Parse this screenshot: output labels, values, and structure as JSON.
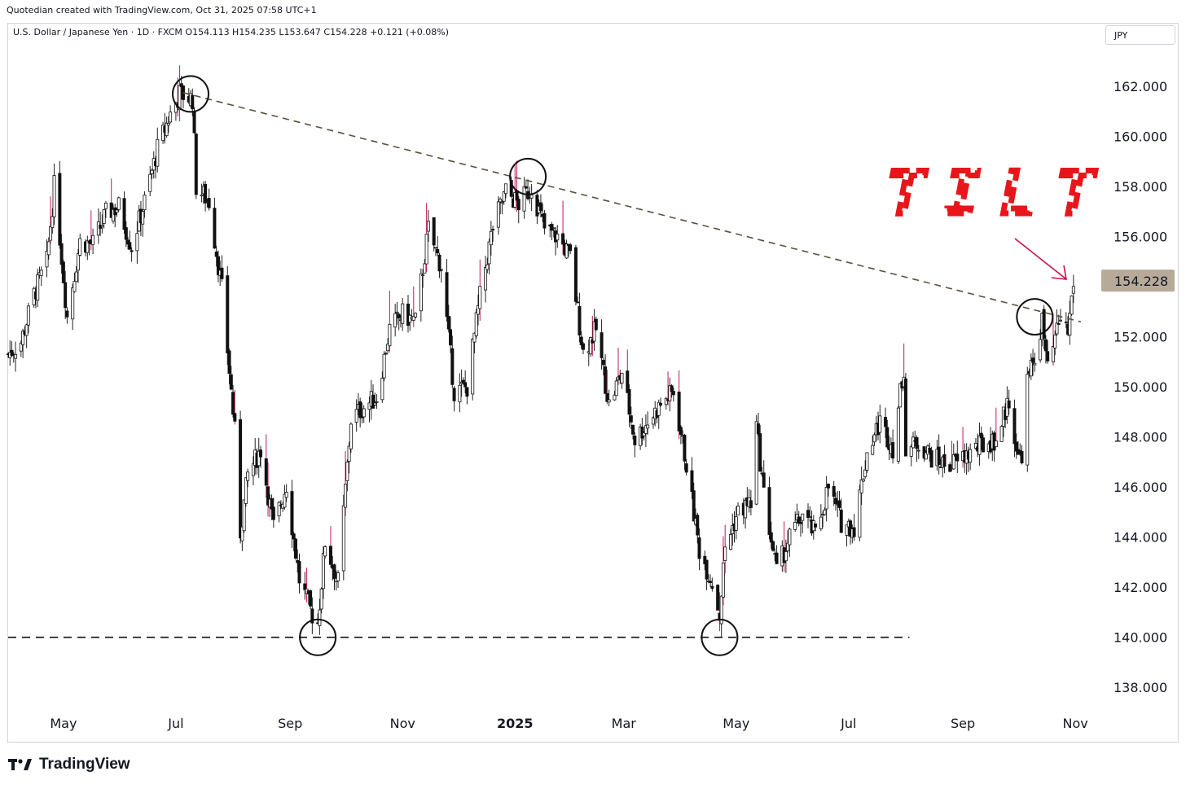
{
  "header": {
    "credit": "Quotedian created with TradingView.com, Oct 31, 2025 07:58 UTC+1",
    "symbol_line": "U.S. Dollar / Japanese Yen · 1D · FXCM  O154.113  H154.235  L153.647  C154.228  +0.121 (+0.08%)",
    "currency": "JPY"
  },
  "footer": {
    "brand": "TradingView",
    "brand_icon": "tradingview-logo-icon"
  },
  "colors": {
    "up": "#ffffff",
    "down": "#111111",
    "wick": "#222222",
    "spike": "#c2185b",
    "trendline": "#5a4f3e",
    "support": "#111111",
    "tilt": "#e8161b",
    "arrow": "#c8104a",
    "price_tag_bg": "#b8aa99"
  },
  "chart_data": {
    "type": "candlestick",
    "title": "",
    "xlabel": "",
    "ylabel": "",
    "ylim": [
      137.0,
      163.5
    ],
    "y_ticks": [
      "138.000",
      "140.000",
      "142.000",
      "144.000",
      "146.000",
      "148.000",
      "150.000",
      "152.000",
      "154.000",
      "156.000",
      "158.000",
      "160.000",
      "162.000"
    ],
    "x_ticks": [
      {
        "label": "May",
        "date": "2024-05-01"
      },
      {
        "label": "Jul",
        "date": "2024-07-01"
      },
      {
        "label": "Sep",
        "date": "2024-09-01"
      },
      {
        "label": "Nov",
        "date": "2024-11-01"
      },
      {
        "label": "2025",
        "date": "2025-01-01",
        "bold": true
      },
      {
        "label": "Mar",
        "date": "2025-03-01"
      },
      {
        "label": "May",
        "date": "2025-05-01"
      },
      {
        "label": "Jul",
        "date": "2025-07-01"
      },
      {
        "label": "Sep",
        "date": "2025-09-01"
      },
      {
        "label": "Nov",
        "date": "2025-11-01"
      }
    ],
    "date_range": [
      "2024-04-01",
      "2025-11-12"
    ],
    "series": [
      {
        "points": [
          [
            "2024-04-01",
            151.3
          ],
          [
            "2024-04-08",
            151.8
          ],
          [
            "2024-04-15",
            153.7
          ],
          [
            "2024-04-22",
            155.0
          ],
          [
            "2024-04-26",
            158.0
          ],
          [
            "2024-04-29",
            156.0
          ],
          [
            "2024-05-03",
            152.8
          ],
          [
            "2024-05-10",
            155.8
          ],
          [
            "2024-05-17",
            155.7
          ],
          [
            "2024-05-24",
            156.9
          ],
          [
            "2024-05-31",
            157.2
          ],
          [
            "2024-06-07",
            155.6
          ],
          [
            "2024-06-14",
            157.4
          ],
          [
            "2024-06-21",
            159.5
          ],
          [
            "2024-06-28",
            160.9
          ],
          [
            "2024-07-03",
            161.7
          ],
          [
            "2024-07-10",
            161.5
          ],
          [
            "2024-07-12",
            158.0
          ],
          [
            "2024-07-19",
            157.4
          ],
          [
            "2024-07-26",
            153.9
          ],
          [
            "2024-08-02",
            148.2
          ],
          [
            "2024-08-05",
            144.2
          ],
          [
            "2024-08-09",
            146.5
          ],
          [
            "2024-08-16",
            147.5
          ],
          [
            "2024-08-23",
            144.4
          ],
          [
            "2024-08-30",
            146.1
          ],
          [
            "2024-09-06",
            142.3
          ],
          [
            "2024-09-13",
            140.9
          ],
          [
            "2024-09-16",
            140.6
          ],
          [
            "2024-09-20",
            143.8
          ],
          [
            "2024-09-27",
            142.2
          ],
          [
            "2024-10-04",
            148.7
          ],
          [
            "2024-10-11",
            149.2
          ],
          [
            "2024-10-18",
            149.6
          ],
          [
            "2024-10-25",
            152.3
          ],
          [
            "2024-11-01",
            152.9
          ],
          [
            "2024-11-08",
            152.6
          ],
          [
            "2024-11-15",
            156.3
          ],
          [
            "2024-11-22",
            154.8
          ],
          [
            "2024-11-29",
            149.8
          ],
          [
            "2024-12-06",
            150.0
          ],
          [
            "2024-12-13",
            153.6
          ],
          [
            "2024-12-20",
            156.4
          ],
          [
            "2024-12-27",
            157.8
          ],
          [
            "2025-01-03",
            157.3
          ],
          [
            "2025-01-10",
            158.0
          ],
          [
            "2025-01-17",
            156.3
          ],
          [
            "2025-01-24",
            156.0
          ],
          [
            "2025-01-31",
            155.2
          ],
          [
            "2025-02-07",
            151.4
          ],
          [
            "2025-02-14",
            152.3
          ],
          [
            "2025-02-21",
            149.3
          ],
          [
            "2025-02-28",
            150.6
          ],
          [
            "2025-03-07",
            147.9
          ],
          [
            "2025-03-14",
            148.6
          ],
          [
            "2025-03-21",
            149.3
          ],
          [
            "2025-03-28",
            149.8
          ],
          [
            "2025-04-04",
            146.9
          ],
          [
            "2025-04-11",
            143.5
          ],
          [
            "2025-04-18",
            142.2
          ],
          [
            "2025-04-22",
            140.9
          ],
          [
            "2025-04-25",
            143.6
          ],
          [
            "2025-05-02",
            145.0
          ],
          [
            "2025-05-09",
            145.4
          ],
          [
            "2025-05-12",
            148.4
          ],
          [
            "2025-05-16",
            145.7
          ],
          [
            "2025-05-23",
            142.6
          ],
          [
            "2025-05-30",
            144.0
          ],
          [
            "2025-06-06",
            144.9
          ],
          [
            "2025-06-13",
            144.1
          ],
          [
            "2025-06-20",
            146.0
          ],
          [
            "2025-06-27",
            144.6
          ],
          [
            "2025-07-04",
            144.4
          ],
          [
            "2025-07-11",
            147.4
          ],
          [
            "2025-07-18",
            148.6
          ],
          [
            "2025-07-25",
            147.6
          ],
          [
            "2025-07-31",
            150.8
          ],
          [
            "2025-08-01",
            147.4
          ],
          [
            "2025-08-08",
            147.8
          ],
          [
            "2025-08-15",
            147.2
          ],
          [
            "2025-08-22",
            146.9
          ],
          [
            "2025-08-29",
            147.0
          ],
          [
            "2025-09-05",
            147.4
          ],
          [
            "2025-09-12",
            147.7
          ],
          [
            "2025-09-19",
            147.9
          ],
          [
            "2025-09-26",
            149.5
          ],
          [
            "2025-10-01",
            147.1
          ],
          [
            "2025-10-03",
            147.4
          ],
          [
            "2025-10-06",
            150.2
          ],
          [
            "2025-10-10",
            151.2
          ],
          [
            "2025-10-14",
            152.6
          ],
          [
            "2025-10-17",
            150.6
          ],
          [
            "2025-10-24",
            152.8
          ],
          [
            "2025-10-28",
            152.2
          ],
          [
            "2025-10-31",
            154.2
          ]
        ]
      }
    ],
    "last_price": "154.228",
    "resistance_trendline": {
      "from": [
        "2024-07-05",
        161.75
      ],
      "to": [
        "2025-11-04",
        152.6
      ]
    },
    "support_line": {
      "value": 140.0,
      "from": "2024-04-01",
      "to": "2025-08-03"
    },
    "circled_points": [
      [
        "2024-07-09",
        161.7
      ],
      [
        "2025-01-08",
        158.4
      ],
      [
        "2024-09-16",
        140.0
      ],
      [
        "2025-04-22",
        140.0
      ],
      [
        "2025-10-10",
        152.8
      ]
    ],
    "annotations": [
      {
        "text": "TILT"
      }
    ]
  }
}
